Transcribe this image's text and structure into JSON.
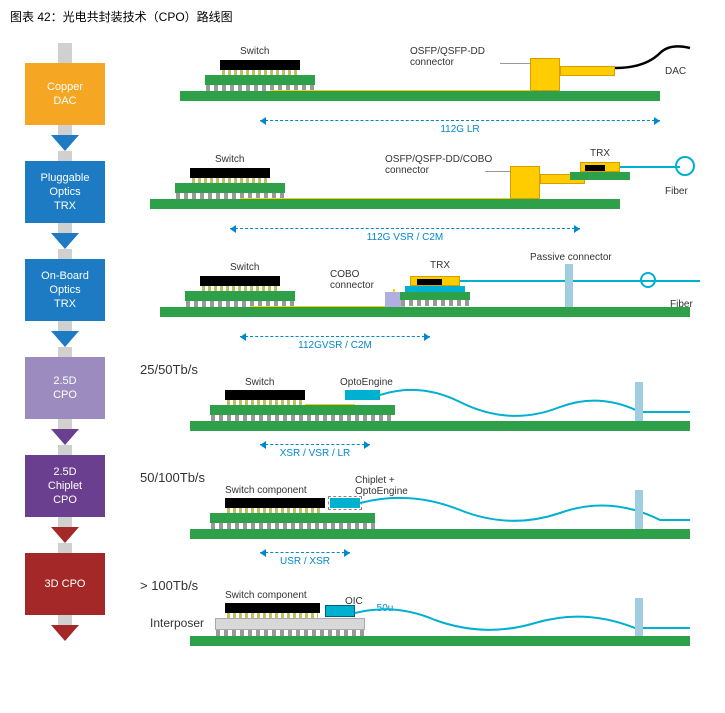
{
  "title": "图表 42：光电共封装技术（CPO）路线图",
  "stages": [
    {
      "id": "copper-dac",
      "label": "Copper\nDAC",
      "color": "#f5a623",
      "arrow_color": "#1d7bc4",
      "diagram": {
        "switch_label": "Switch",
        "connector_label": "OSFP/QSFP-DD\nconnector",
        "right_label": "DAC",
        "metric": "112G LR"
      }
    },
    {
      "id": "pluggable",
      "label": "Pluggable\nOptics\nTRX",
      "color": "#1d7bc4",
      "arrow_color": "#1d7bc4",
      "diagram": {
        "switch_label": "Switch",
        "connector_label": "OSFP/QSFP-DD/COBO\nconnector",
        "trx_label": "TRX",
        "right_label": "Fiber",
        "metric": "112G VSR / C2M"
      }
    },
    {
      "id": "onboard",
      "label": "On-Board\nOptics\nTRX",
      "color": "#1d7bc4",
      "arrow_color": "#1d7bc4",
      "diagram": {
        "switch_label": "Switch",
        "cobo_label": "COBO\nconnector",
        "trx_label": "TRX",
        "passive_label": "Passive connector",
        "right_label": "Fiber",
        "metric": "112GVSR / C2M"
      }
    },
    {
      "id": "2.5d-cpo",
      "label": "2.5D\nCPO",
      "color": "#9b8bbf",
      "arrow_color": "#6b3f8f",
      "throughput": "25/50Tb/s",
      "diagram": {
        "switch_label": "Switch",
        "opto_label": "OptoEngine",
        "metric": "XSR / VSR / LR"
      }
    },
    {
      "id": "2.5d-chiplet",
      "label": "2.5D\nChiplet\nCPO",
      "color": "#6b3f8f",
      "arrow_color": "#a52828",
      "throughput": "50/100Tb/s",
      "diagram": {
        "switch_label": "Switch component",
        "opto_label": "Chiplet +\nOptoEngine",
        "metric": "USR / XSR"
      }
    },
    {
      "id": "3d-cpo",
      "label": "3D CPO",
      "color": "#a52828",
      "arrow_color": "#a52828",
      "throughput": "> 100Tb/s",
      "diagram": {
        "switch_label": "Switch component",
        "oic_label": "OIC",
        "interposer": "Interposer",
        "small_metric": "50u"
      }
    }
  ],
  "colors": {
    "pcb": "#2fa04a",
    "chip": "#000000",
    "osfp": "#ffcc00",
    "opto": "#00b0d0",
    "fiber": "#00b0d0",
    "connector_bar": "#d0d0d0",
    "metric": "#0088cc"
  }
}
